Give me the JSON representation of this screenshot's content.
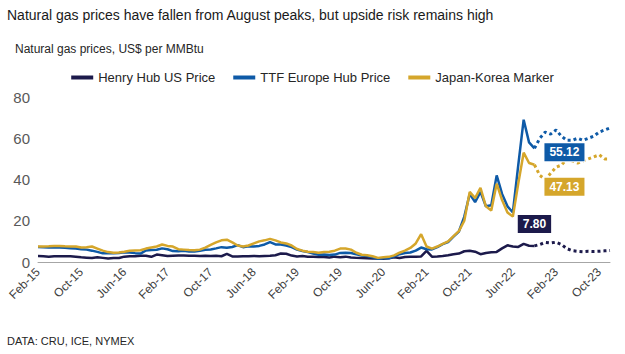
{
  "chart_data": {
    "type": "line",
    "title": "Natural gas prices have fallen from August peaks, but upside risk remains high",
    "subtitle": "Natural gas prices, US$ per MMBtu",
    "source": "DATA: CRU, ICE, NYMEX",
    "categories": [
      "Feb-15",
      null,
      null,
      null,
      null,
      null,
      null,
      null,
      "Oct-15",
      null,
      null,
      null,
      null,
      null,
      null,
      null,
      "Jun-16",
      null,
      null,
      null,
      null,
      null,
      null,
      null,
      "Feb-17",
      null,
      null,
      null,
      null,
      null,
      null,
      null,
      "Oct-17",
      null,
      null,
      null,
      null,
      null,
      null,
      null,
      "Jun-18",
      null,
      null,
      null,
      null,
      null,
      null,
      null,
      "Feb-19",
      null,
      null,
      null,
      null,
      null,
      null,
      null,
      "Oct-19",
      null,
      null,
      null,
      null,
      null,
      null,
      null,
      "Jun-20",
      null,
      null,
      null,
      null,
      null,
      null,
      null,
      "Feb-21",
      null,
      null,
      null,
      null,
      null,
      null,
      null,
      "Oct-21",
      null,
      null,
      null,
      null,
      null,
      null,
      null,
      "Jun-22",
      null,
      null,
      null,
      null,
      null,
      null,
      null,
      "Feb-23",
      null,
      null,
      null,
      null,
      null,
      null,
      null,
      "Oct-23",
      null,
      null
    ],
    "series": [
      {
        "name": "Henry Hub US Price",
        "color": "#1c1a4b",
        "line_style": "solid",
        "values": [
          2.9,
          2.8,
          2.6,
          2.8,
          2.8,
          2.8,
          2.8,
          2.6,
          2.3,
          2.1,
          1.9,
          2.3,
          2.0,
          1.7,
          1.9,
          1.9,
          2.6,
          2.8,
          2.8,
          3.0,
          3.0,
          2.5,
          3.6,
          3.3,
          2.9,
          3.0,
          3.1,
          3.2,
          3.0,
          3.0,
          2.9,
          3.0,
          2.9,
          3.0,
          2.8,
          3.9,
          2.7,
          2.7,
          2.8,
          2.8,
          2.9,
          2.8,
          2.9,
          3.0,
          3.3,
          4.1,
          4.0,
          3.1,
          2.7,
          2.9,
          2.6,
          2.6,
          2.4,
          2.4,
          2.2,
          2.6,
          2.3,
          2.6,
          2.2,
          2.0,
          1.9,
          1.8,
          1.7,
          1.8,
          1.6,
          1.8,
          2.3,
          1.9,
          2.4,
          2.6,
          2.6,
          2.7,
          5.4,
          2.6,
          2.7,
          2.9,
          3.3,
          3.8,
          4.1,
          5.2,
          5.5,
          5.0,
          3.8,
          4.4,
          4.7,
          4.9,
          6.6,
          8.1,
          7.5,
          7.3,
          8.8,
          7.9,
          7.8,
          null,
          null,
          null,
          null,
          null,
          null,
          null,
          null,
          null,
          null,
          null,
          null,
          null,
          null
        ]
      },
      {
        "name": "TTF Europe Hub Price",
        "color": "#0e5aa7",
        "line_style": "solid",
        "values": [
          7.3,
          7.2,
          7.0,
          7.0,
          7.0,
          6.9,
          6.7,
          6.5,
          6.2,
          6.0,
          5.5,
          4.9,
          4.2,
          4.2,
          4.2,
          4.4,
          4.7,
          4.6,
          4.3,
          4.1,
          5.6,
          5.8,
          5.9,
          6.6,
          6.2,
          5.3,
          5.2,
          5.4,
          5.1,
          5.1,
          5.4,
          5.9,
          6.1,
          6.6,
          7.2,
          6.9,
          7.3,
          8.2,
          7.2,
          7.6,
          7.5,
          7.8,
          8.5,
          9.6,
          8.5,
          8.5,
          8.0,
          7.2,
          6.0,
          5.3,
          4.8,
          4.1,
          3.5,
          3.6,
          3.4,
          3.6,
          4.4,
          4.5,
          4.4,
          3.7,
          3.1,
          2.9,
          2.3,
          1.6,
          1.8,
          1.8,
          2.8,
          3.8,
          4.4,
          4.6,
          5.5,
          7.0,
          6.2,
          6.1,
          7.2,
          8.7,
          9.7,
          12.3,
          14.8,
          22.0,
          33.0,
          29.0,
          34.0,
          27.0,
          27.5,
          42.0,
          33.0,
          27.0,
          24.0,
          47.0,
          69.0,
          58.0,
          55.12,
          null,
          null,
          null,
          null,
          null,
          null,
          null,
          null,
          null,
          null,
          null,
          null,
          null,
          null
        ]
      },
      {
        "name": "Japan-Korea Marker",
        "color": "#d5a62b",
        "line_style": "solid",
        "values": [
          7.5,
          7.5,
          7.6,
          7.8,
          7.8,
          7.6,
          7.5,
          7.5,
          7.0,
          7.1,
          7.5,
          6.5,
          5.5,
          4.8,
          4.5,
          4.6,
          5.0,
          5.5,
          5.6,
          5.7,
          6.5,
          7.0,
          7.5,
          8.5,
          7.8,
          7.5,
          6.2,
          6.0,
          5.8,
          5.7,
          6.0,
          7.0,
          8.3,
          9.5,
          10.5,
          10.8,
          9.5,
          8.0,
          7.5,
          8.0,
          9.0,
          10.0,
          10.5,
          11.2,
          10.5,
          9.5,
          9.0,
          8.0,
          6.3,
          5.5,
          5.0,
          4.8,
          4.5,
          4.8,
          5.0,
          5.5,
          6.5,
          6.5,
          6.0,
          4.5,
          3.5,
          3.3,
          2.8,
          2.0,
          2.3,
          2.5,
          3.2,
          4.5,
          5.5,
          6.8,
          9.0,
          13.5,
          7.5,
          6.5,
          7.5,
          8.8,
          10.0,
          12.5,
          15.0,
          20.0,
          34.0,
          31.0,
          36.0,
          27.0,
          25.0,
          38.0,
          30.0,
          24.0,
          22.0,
          38.0,
          53.0,
          48.0,
          47.13,
          null,
          null,
          null,
          null,
          null,
          null,
          null,
          null,
          null,
          null,
          null,
          null,
          null,
          null
        ]
      },
      {
        "name": "Henry Hub US Price",
        "color": "#1c1a4b",
        "line_style": "dotted",
        "values": [
          null,
          null,
          null,
          null,
          null,
          null,
          null,
          null,
          null,
          null,
          null,
          null,
          null,
          null,
          null,
          null,
          null,
          null,
          null,
          null,
          null,
          null,
          null,
          null,
          null,
          null,
          null,
          null,
          null,
          null,
          null,
          null,
          null,
          null,
          null,
          null,
          null,
          null,
          null,
          null,
          null,
          null,
          null,
          null,
          null,
          null,
          null,
          null,
          null,
          null,
          null,
          null,
          null,
          null,
          null,
          null,
          null,
          null,
          null,
          null,
          null,
          null,
          null,
          null,
          null,
          null,
          null,
          null,
          null,
          null,
          null,
          null,
          null,
          null,
          null,
          null,
          null,
          null,
          null,
          null,
          null,
          null,
          null,
          null,
          null,
          null,
          null,
          null,
          null,
          null,
          null,
          null,
          7.8,
          8.5,
          9.5,
          9.2,
          9.6,
          8.5,
          6.5,
          5.5,
          5.2,
          5.0,
          5.2,
          5.1,
          5.2,
          5.4,
          5.6
        ]
      },
      {
        "name": "TTF Europe Hub Price",
        "color": "#0e5aa7",
        "line_style": "dotted",
        "values": [
          null,
          null,
          null,
          null,
          null,
          null,
          null,
          null,
          null,
          null,
          null,
          null,
          null,
          null,
          null,
          null,
          null,
          null,
          null,
          null,
          null,
          null,
          null,
          null,
          null,
          null,
          null,
          null,
          null,
          null,
          null,
          null,
          null,
          null,
          null,
          null,
          null,
          null,
          null,
          null,
          null,
          null,
          null,
          null,
          null,
          null,
          null,
          null,
          null,
          null,
          null,
          null,
          null,
          null,
          null,
          null,
          null,
          null,
          null,
          null,
          null,
          null,
          null,
          null,
          null,
          null,
          null,
          null,
          null,
          null,
          null,
          null,
          null,
          null,
          null,
          null,
          null,
          null,
          null,
          null,
          null,
          null,
          null,
          null,
          null,
          null,
          null,
          null,
          null,
          null,
          null,
          null,
          55.12,
          60.0,
          63.0,
          62.0,
          64.0,
          61.0,
          59.0,
          59.0,
          60.0,
          59.0,
          60.0,
          61.0,
          63.0,
          64.0,
          65.0
        ]
      },
      {
        "name": "Japan-Korea Marker",
        "color": "#d5a62b",
        "line_style": "dotted",
        "values": [
          null,
          null,
          null,
          null,
          null,
          null,
          null,
          null,
          null,
          null,
          null,
          null,
          null,
          null,
          null,
          null,
          null,
          null,
          null,
          null,
          null,
          null,
          null,
          null,
          null,
          null,
          null,
          null,
          null,
          null,
          null,
          null,
          null,
          null,
          null,
          null,
          null,
          null,
          null,
          null,
          null,
          null,
          null,
          null,
          null,
          null,
          null,
          null,
          null,
          null,
          null,
          null,
          null,
          null,
          null,
          null,
          null,
          null,
          null,
          null,
          null,
          null,
          null,
          null,
          null,
          null,
          null,
          null,
          null,
          null,
          null,
          null,
          null,
          null,
          null,
          null,
          null,
          null,
          null,
          null,
          null,
          null,
          null,
          null,
          null,
          null,
          null,
          null,
          null,
          null,
          null,
          null,
          47.13,
          42.0,
          40.0,
          43.0,
          46.0,
          47.0,
          50.0,
          49.0,
          48.0,
          49.0,
          50.0,
          51.0,
          52.0,
          50.0,
          50.0
        ]
      }
    ],
    "annotations": [
      {
        "text": "55.12",
        "series": "TTF Europe Hub Price"
      },
      {
        "text": "47.13",
        "series": "Japan-Korea Marker"
      },
      {
        "text": "7.80",
        "series": "Henry Hub US Price"
      }
    ],
    "ylim": [
      0,
      80
    ],
    "yticks": [
      0,
      20,
      40,
      60,
      80
    ],
    "grid": false,
    "legend": "top"
  }
}
